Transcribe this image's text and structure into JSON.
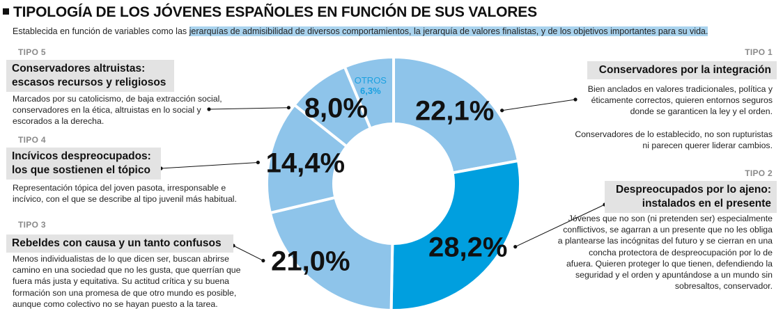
{
  "title": "TIPOLOGÍA DE LOS JÓVENES ESPAÑOLES EN FUNCIÓN DE SUS VALORES",
  "subtitle": {
    "before": "Establecida en función de variables como las ",
    "highlight": "jerarquías de admisibilidad de diversos comportamientos, la jerarquía de valores finalistas, y de los objetivos importantes para su vida."
  },
  "types": [
    {
      "id": "tipo1",
      "label": "TIPO 1",
      "name_lines": [
        "Conservadores por la integración"
      ],
      "desc_lines": [
        "Bien anclados en valores tradicionales, política y",
        "éticamente correctos, quieren entornos seguros",
        "donde se garanticen la ley y el orden.",
        "",
        "Conservadores de lo establecido, no son rupturistas",
        "ni parecen querer liderar cambios."
      ]
    },
    {
      "id": "tipo2",
      "label": "TIPO 2",
      "name_lines": [
        "Despreocupados por lo ajeno:",
        "instalados en el presente"
      ],
      "desc_lines": [
        "Jóvenes que no son (ni pretenden ser) especialmente",
        "conflictivos, se agarran a un presente que no les obliga",
        "a plantearse las incógnitas del futuro y se cierran en una",
        "concha protectora de despreocupación por lo de",
        "afuera. Quieren proteger lo que tienen, defendiendo la",
        "seguridad y el orden y apuntándose a un mundo sin",
        "sobresaltos, conservador."
      ]
    },
    {
      "id": "tipo3",
      "label": "TIPO 3",
      "name_lines": [
        "Rebeldes con causa y un tanto confusos"
      ],
      "desc_lines": [
        "Menos individualistas de lo que dicen ser, buscan abrirse",
        "camino en una sociedad que no les gusta, que querrían que",
        "fuera más justa y equitativa. Su actitud crítica y su buena",
        "formación son una promesa de que otro mundo es posible,",
        "aunque como colectivo no se hayan puesto a la tarea."
      ]
    },
    {
      "id": "tipo4",
      "label": "TIPO 4",
      "name_lines": [
        "Incívicos despreocupados:",
        "los que sostienen el tópico"
      ],
      "desc_lines": [
        "Representación tópica del joven pasota, irresponsable e",
        "incívico, con el que se describe al tipo juvenil más habitual."
      ]
    },
    {
      "id": "tipo5",
      "label": "TIPO 5",
      "name_lines": [
        "Conservadores altruistas:",
        "escasos recursos y religiosos"
      ],
      "desc_lines": [
        "Marcados por su catolicismo, de baja extracción social,",
        "conservadores en la ética, altruistas en lo social y",
        "escorados a la derecha."
      ]
    }
  ],
  "chart_data": {
    "type": "pie",
    "style": "donut",
    "start": "top",
    "direction": "clockwise",
    "slices": [
      {
        "type_id": "tipo1",
        "value": 22.1,
        "label": "22,1%",
        "color": "#8ec4ea"
      },
      {
        "type_id": "tipo2",
        "value": 28.2,
        "label": "28,2%",
        "color": "#009fdf"
      },
      {
        "type_id": "tipo3",
        "value": 21.0,
        "label": "21,0%",
        "color": "#8ec4ea"
      },
      {
        "type_id": "tipo4",
        "value": 14.4,
        "label": "14,4%",
        "color": "#8ec4ea"
      },
      {
        "type_id": "tipo5",
        "value": 8.0,
        "label": "8,0%",
        "color": "#8ec4ea"
      },
      {
        "type_id": "otros",
        "value": 6.3,
        "label": "6,3%",
        "name": "OTROS",
        "color": "#8ec4ea",
        "text_color": "#1aa0e0"
      }
    ]
  }
}
